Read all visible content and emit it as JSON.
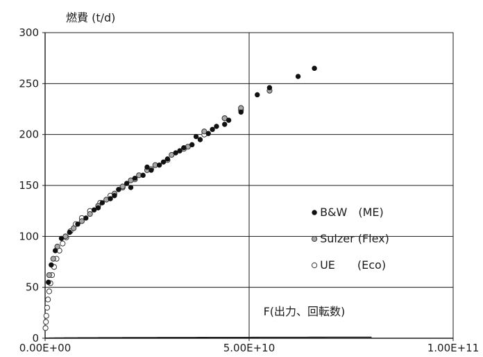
{
  "chart_data": {
    "type": "scatter",
    "ylabel": "燃費 (t/d)",
    "annotation": "F(出力、回転数)",
    "xlim": [
      0,
      100000000000
    ],
    "ylim": [
      0,
      300
    ],
    "x_ticks": [
      0,
      50000000000,
      100000000000
    ],
    "x_tick_labels": [
      "0.00E+00",
      "5.00E+10",
      "1.00E+11"
    ],
    "y_ticks": [
      0,
      50,
      100,
      150,
      200,
      250,
      300
    ],
    "y_tick_labels": [
      "0",
      "50",
      "100",
      "150",
      "200",
      "250",
      "300"
    ],
    "grid": true,
    "legend_position": "right",
    "series": [
      {
        "name": "B&W　(ME)",
        "marker": "filled-black",
        "color": "#111111",
        "points": [
          [
            800000000,
            55
          ],
          [
            1500000000,
            72
          ],
          [
            2500000000,
            86
          ],
          [
            4000000000,
            98
          ],
          [
            6000000000,
            104
          ],
          [
            8000000000,
            112
          ],
          [
            10000000000,
            118
          ],
          [
            12000000000,
            126
          ],
          [
            14000000000,
            133
          ],
          [
            16000000000,
            137
          ],
          [
            18000000000,
            146
          ],
          [
            20000000000,
            152
          ],
          [
            22000000000,
            157
          ],
          [
            24000000000,
            160
          ],
          [
            26000000000,
            165
          ],
          [
            28000000000,
            170
          ],
          [
            30000000000,
            176
          ],
          [
            32000000000,
            182
          ],
          [
            34000000000,
            187
          ],
          [
            36000000000,
            190
          ],
          [
            38000000000,
            195
          ],
          [
            40000000000,
            201
          ],
          [
            42000000000,
            208
          ],
          [
            44000000000,
            210
          ],
          [
            48000000000,
            222
          ],
          [
            52000000000,
            239
          ],
          [
            55000000000,
            246
          ],
          [
            62000000000,
            257
          ],
          [
            66000000000,
            265
          ],
          [
            13000000000,
            128
          ],
          [
            17000000000,
            140
          ],
          [
            21000000000,
            148
          ],
          [
            25000000000,
            168
          ],
          [
            29000000000,
            173
          ],
          [
            33000000000,
            184
          ],
          [
            37000000000,
            198
          ],
          [
            41000000000,
            205
          ],
          [
            45000000000,
            214
          ]
        ]
      },
      {
        "name": "Sulzer (Flex)",
        "marker": "filled-gray",
        "color": "#9a9a9a",
        "points": [
          [
            1000000000,
            62
          ],
          [
            2000000000,
            78
          ],
          [
            3000000000,
            90
          ],
          [
            5000000000,
            100
          ],
          [
            7000000000,
            108
          ],
          [
            9000000000,
            115
          ],
          [
            11000000000,
            122
          ],
          [
            13000000000,
            130
          ],
          [
            15000000000,
            136
          ],
          [
            17000000000,
            142
          ],
          [
            19000000000,
            149
          ],
          [
            21000000000,
            155
          ],
          [
            23000000000,
            160
          ],
          [
            25000000000,
            165
          ],
          [
            27000000000,
            170
          ],
          [
            31000000000,
            180
          ],
          [
            35000000000,
            188
          ],
          [
            39000000000,
            203
          ],
          [
            44000000000,
            216
          ],
          [
            48000000000,
            226
          ],
          [
            55000000000,
            243
          ]
        ]
      },
      {
        "name": "UE　　(Eco)",
        "marker": "hollow",
        "color": "#ffffff",
        "points": [
          [
            100000000,
            10
          ],
          [
            200000000,
            16
          ],
          [
            300000000,
            22
          ],
          [
            500000000,
            30
          ],
          [
            700000000,
            38
          ],
          [
            1000000000,
            46
          ],
          [
            1300000000,
            54
          ],
          [
            1700000000,
            62
          ],
          [
            2200000000,
            70
          ],
          [
            2800000000,
            78
          ],
          [
            3500000000,
            86
          ],
          [
            4300000000,
            93
          ],
          [
            5200000000,
            99
          ],
          [
            6200000000,
            105
          ],
          [
            7500000000,
            112
          ],
          [
            9000000000,
            118
          ],
          [
            11000000000,
            125
          ],
          [
            13500000000,
            133
          ],
          [
            16000000000,
            140
          ],
          [
            19000000000,
            148
          ],
          [
            22000000000,
            156
          ],
          [
            26000000000,
            166
          ],
          [
            30000000000,
            175
          ],
          [
            34000000000,
            186
          ],
          [
            39000000000,
            200
          ],
          [
            44000000000,
            216
          ],
          [
            48000000000,
            224
          ]
        ]
      }
    ],
    "fit_curve": {
      "a": 0.000248,
      "b": 0.334,
      "x_max": 80000000000
    }
  }
}
